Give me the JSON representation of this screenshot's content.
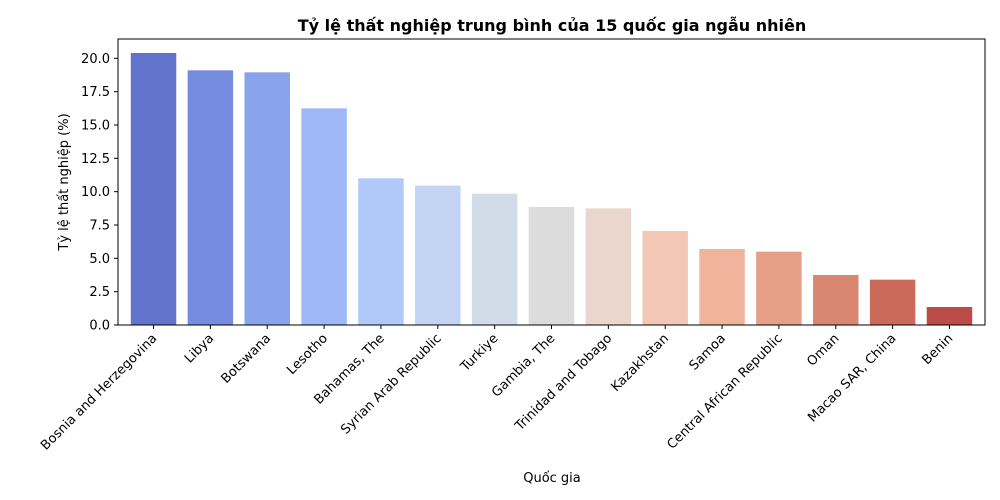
{
  "chart_data": {
    "type": "bar",
    "title": "Tỷ lệ thất nghiệp trung bình của 15 quốc gia ngẫu nhiên",
    "xlabel": "Quốc gia",
    "ylabel": "Tỷ lệ thất nghiệp (%)",
    "categories": [
      "Bosnia and Herzegovina",
      "Libya",
      "Botswana",
      "Lesotho",
      "Bahamas, The",
      "Syrian Arab Republic",
      "Turkiye",
      "Gambia, The",
      "Trinidad and Tobago",
      "Kazakhstan",
      "Samoa",
      "Central African Republic",
      "Oman",
      "Macao SAR, China",
      "Benin"
    ],
    "values": [
      20.4,
      19.1,
      18.95,
      16.25,
      11.0,
      10.45,
      9.85,
      8.85,
      8.75,
      7.05,
      5.7,
      5.5,
      3.75,
      3.4,
      1.35
    ],
    "colors": [
      "#6273cc",
      "#768cdf",
      "#89a4ec",
      "#9db8f5",
      "#b1c9f9",
      "#c2d4f2",
      "#d2dce8",
      "#dddcdc",
      "#ead6cc",
      "#f2c8b5",
      "#efb49b",
      "#e69f87",
      "#da8771",
      "#cb6a5a",
      "#bb4c48"
    ],
    "yticks": [
      "0.0",
      "2.5",
      "5.0",
      "7.5",
      "10.0",
      "12.5",
      "15.0",
      "17.5",
      "20.0"
    ],
    "ylim": [
      0,
      21.45
    ],
    "grid": false,
    "legend": "none"
  }
}
